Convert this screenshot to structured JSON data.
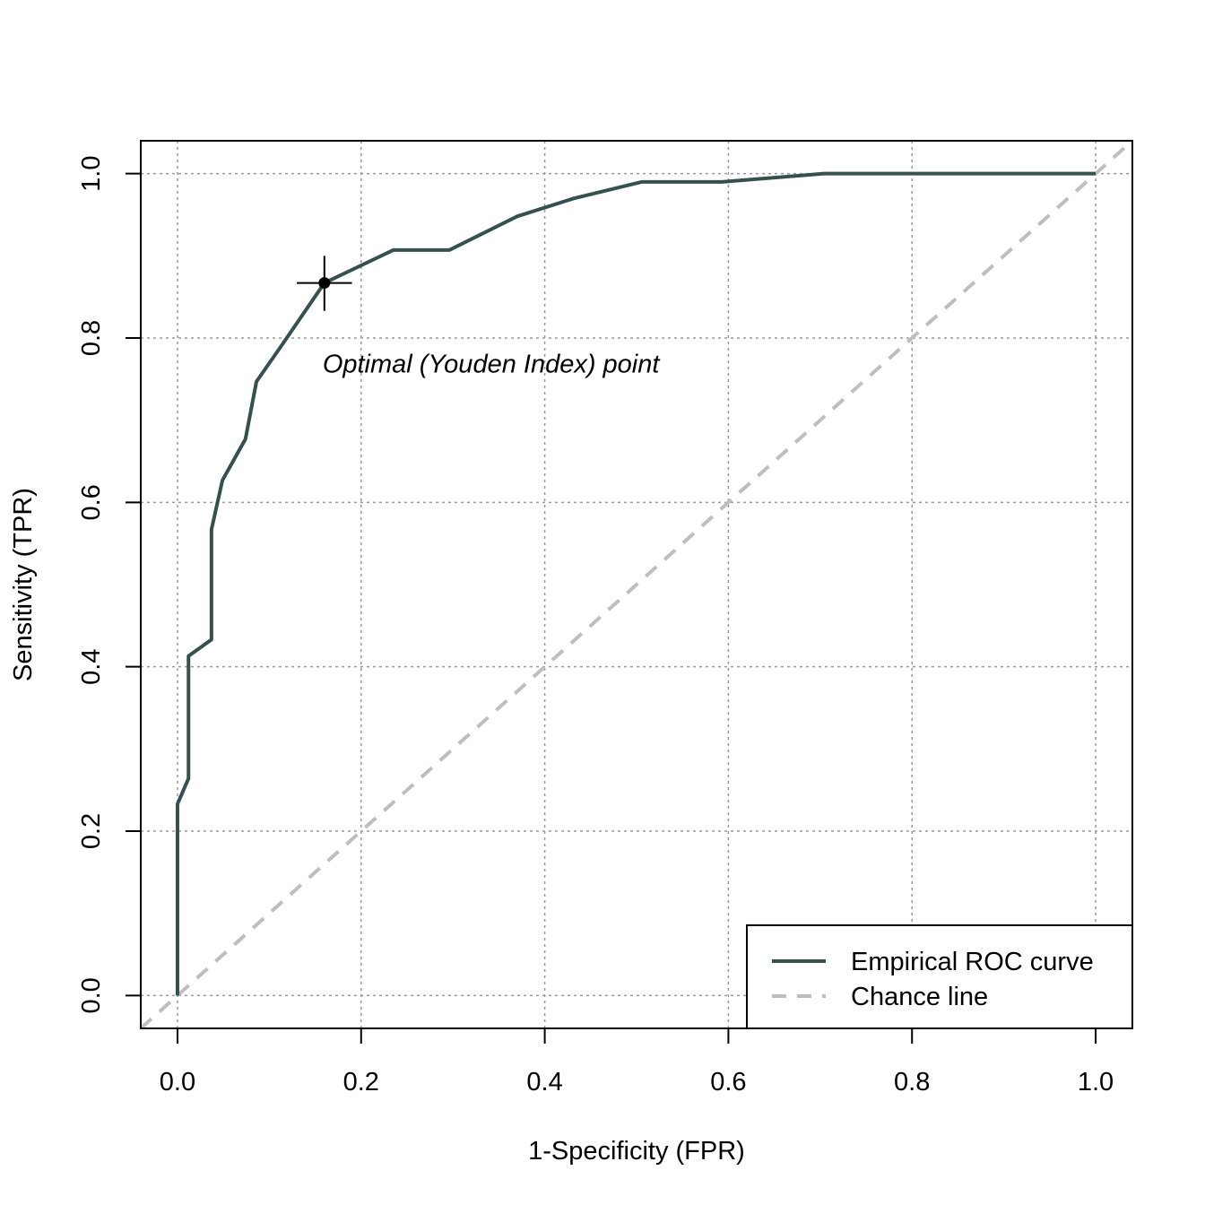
{
  "chart_data": {
    "type": "line",
    "title": "",
    "xlabel": "1-Specificity (FPR)",
    "ylabel": "Sensitivity (TPR)",
    "xlim": [
      -0.04,
      1.04
    ],
    "ylim": [
      -0.04,
      1.04
    ],
    "xticks": [
      "0.0",
      "0.2",
      "0.4",
      "0.6",
      "0.8",
      "1.0"
    ],
    "yticks": [
      "0.0",
      "0.2",
      "0.4",
      "0.6",
      "0.8",
      "1.0"
    ],
    "grid": true,
    "legend_position": "bottom-right",
    "series": [
      {
        "name": "Empirical ROC curve",
        "color": "#36504f",
        "style": "solid",
        "x": [
          0.0,
          0.0,
          0.012,
          0.012,
          0.037,
          0.037,
          0.049,
          0.074,
          0.086,
          0.111,
          0.16,
          0.235,
          0.296,
          0.37,
          0.432,
          0.506,
          0.593,
          0.704,
          1.0
        ],
        "y": [
          0.0,
          0.233,
          0.264,
          0.413,
          0.433,
          0.567,
          0.627,
          0.677,
          0.747,
          0.787,
          0.867,
          0.907,
          0.907,
          0.948,
          0.97,
          0.99,
          0.99,
          1.0,
          1.0
        ]
      },
      {
        "name": "Chance line",
        "color": "#bebebe",
        "style": "dashed",
        "x": [
          -0.04,
          1.04
        ],
        "y": [
          -0.04,
          1.04
        ]
      }
    ],
    "optimal_point": {
      "x": 0.16,
      "y": 0.867,
      "ci_x": [
        0.13,
        0.19
      ],
      "ci_y": [
        0.833,
        0.9
      ]
    },
    "annotations": [
      {
        "text": "Optimal (Youden Index) point",
        "x": 0.16,
        "y": 0.77
      }
    ]
  }
}
